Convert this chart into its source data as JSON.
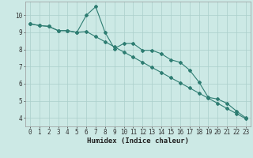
{
  "xlabel": "Humidex (Indice chaleur)",
  "bg_color": "#cce9e5",
  "grid_color": "#aacfcb",
  "line_color": "#2e7d72",
  "x_line1": [
    0,
    1,
    2,
    3,
    4,
    5,
    6,
    7,
    8,
    9,
    10,
    11,
    12,
    13,
    14,
    15,
    16,
    17,
    18,
    19,
    20,
    21,
    22,
    23
  ],
  "y_line1": [
    9.5,
    9.4,
    9.35,
    9.1,
    9.1,
    9.0,
    10.0,
    10.5,
    9.0,
    8.05,
    8.35,
    8.35,
    7.95,
    7.95,
    7.75,
    7.4,
    7.25,
    6.8,
    6.1,
    5.2,
    5.1,
    4.85,
    4.4,
    4.0
  ],
  "x_line2": [
    0,
    1,
    2,
    3,
    4,
    5,
    6,
    7,
    8,
    9,
    10,
    11,
    12,
    13,
    14,
    15,
    16,
    17,
    18,
    19,
    20,
    21,
    22,
    23
  ],
  "y_line2": [
    9.5,
    9.4,
    9.35,
    9.1,
    9.1,
    9.0,
    9.05,
    8.75,
    8.45,
    8.15,
    7.85,
    7.55,
    7.25,
    6.95,
    6.65,
    6.35,
    6.05,
    5.75,
    5.45,
    5.15,
    4.85,
    4.55,
    4.25,
    3.95
  ],
  "xlim": [
    -0.5,
    23.5
  ],
  "ylim": [
    3.5,
    10.8
  ],
  "yticks": [
    4,
    5,
    6,
    7,
    8,
    9,
    10
  ],
  "xticks": [
    0,
    1,
    2,
    3,
    4,
    5,
    6,
    7,
    8,
    9,
    10,
    11,
    12,
    13,
    14,
    15,
    16,
    17,
    18,
    19,
    20,
    21,
    22,
    23
  ],
  "xtick_labels": [
    "0",
    "1",
    "2",
    "3",
    "4",
    "5",
    "6",
    "7",
    "8",
    "9",
    "10",
    "11",
    "12",
    "13",
    "14",
    "15",
    "16",
    "17",
    "18",
    "19",
    "20",
    "21",
    "22",
    "23"
  ],
  "marker": "D",
  "markersize": 2.0,
  "linewidth": 0.8,
  "tick_fontsize": 5.5,
  "label_fontsize": 6.5
}
